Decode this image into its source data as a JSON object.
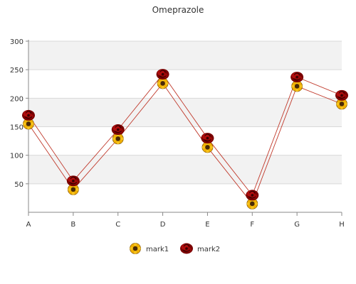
{
  "chart_data": {
    "type": "line",
    "title": "Omeprazole",
    "xlabel": "",
    "ylabel": "",
    "categories": [
      "A",
      "B",
      "C",
      "D",
      "E",
      "F",
      "G",
      "H"
    ],
    "ylim": [
      0,
      300
    ],
    "yticks": [
      50,
      100,
      150,
      200,
      250,
      300
    ],
    "grid": true,
    "legend_position": "bottom",
    "series": [
      {
        "name": "mark1",
        "values": [
          155,
          40,
          129,
          226,
          114,
          15,
          221,
          190
        ],
        "color": "#c0392b",
        "marker_icon": "sunflower-icon"
      },
      {
        "name": "mark2",
        "values": [
          170,
          55,
          145,
          242,
          130,
          30,
          237,
          205
        ],
        "color": "#c0392b",
        "marker_icon": "red-rose-icon"
      }
    ]
  }
}
